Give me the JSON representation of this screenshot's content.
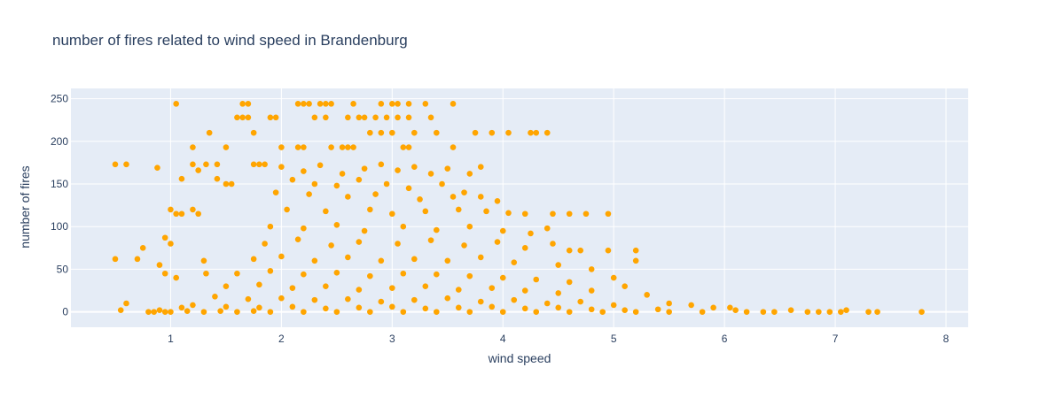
{
  "chart_data": {
    "type": "scatter",
    "title": "number of fires related to wind speed in Brandenburg",
    "xlabel": "wind speed",
    "ylabel": "number of fires",
    "xlim": [
      0.1,
      8.2
    ],
    "ylim": [
      -18,
      262
    ],
    "x_ticks": [
      1,
      2,
      3,
      4,
      5,
      6,
      7,
      8
    ],
    "y_ticks": [
      0,
      50,
      100,
      150,
      200,
      250
    ],
    "grid": true,
    "legend": "none",
    "colors": {
      "marker": "#FFA500",
      "plot_bg": "#E5ECF6",
      "grid": "#ffffff",
      "text": "#2a3f5f"
    },
    "series": [
      {
        "points": [
          [
            0.5,
            173
          ],
          [
            0.6,
            173
          ],
          [
            0.5,
            62
          ],
          [
            0.88,
            169
          ],
          [
            1.05,
            244
          ],
          [
            1.65,
            244
          ],
          [
            1.7,
            244
          ],
          [
            2.15,
            244
          ],
          [
            2.2,
            244
          ],
          [
            2.25,
            244
          ],
          [
            2.35,
            244
          ],
          [
            2.4,
            244
          ],
          [
            2.45,
            244
          ],
          [
            2.65,
            244
          ],
          [
            2.9,
            244
          ],
          [
            3.0,
            244
          ],
          [
            3.05,
            244
          ],
          [
            3.15,
            244
          ],
          [
            3.3,
            244
          ],
          [
            3.55,
            244
          ],
          [
            1.6,
            228
          ],
          [
            1.65,
            228
          ],
          [
            1.7,
            228
          ],
          [
            1.9,
            228
          ],
          [
            1.95,
            228
          ],
          [
            2.3,
            228
          ],
          [
            2.4,
            228
          ],
          [
            2.6,
            228
          ],
          [
            2.7,
            228
          ],
          [
            2.75,
            228
          ],
          [
            2.85,
            228
          ],
          [
            2.95,
            228
          ],
          [
            3.05,
            228
          ],
          [
            3.15,
            228
          ],
          [
            3.35,
            228
          ],
          [
            1.75,
            210
          ],
          [
            2.8,
            210
          ],
          [
            2.9,
            210
          ],
          [
            3.0,
            210
          ],
          [
            3.2,
            210
          ],
          [
            3.4,
            210
          ],
          [
            3.75,
            210
          ],
          [
            3.9,
            210
          ],
          [
            4.05,
            210
          ],
          [
            4.25,
            210
          ],
          [
            4.3,
            210
          ],
          [
            4.4,
            210
          ],
          [
            1.35,
            210
          ],
          [
            1.2,
            193
          ],
          [
            1.5,
            193
          ],
          [
            2.0,
            193
          ],
          [
            2.15,
            193
          ],
          [
            2.2,
            193
          ],
          [
            2.45,
            193
          ],
          [
            2.55,
            193
          ],
          [
            2.6,
            193
          ],
          [
            2.65,
            193
          ],
          [
            3.15,
            193
          ],
          [
            3.55,
            193
          ],
          [
            3.1,
            193
          ],
          [
            1.2,
            173
          ],
          [
            1.32,
            173
          ],
          [
            1.42,
            173
          ],
          [
            1.75,
            173
          ],
          [
            1.8,
            173
          ],
          [
            1.85,
            173
          ],
          [
            1.1,
            156
          ],
          [
            1.25,
            166
          ],
          [
            1.5,
            150
          ],
          [
            1.55,
            150
          ],
          [
            1.42,
            156
          ],
          [
            1.0,
            120
          ],
          [
            1.05,
            115
          ],
          [
            1.1,
            115
          ],
          [
            1.2,
            120
          ],
          [
            1.25,
            115
          ],
          [
            0.95,
            87
          ],
          [
            1.0,
            80
          ],
          [
            0.75,
            75
          ],
          [
            0.7,
            62
          ],
          [
            0.9,
            55
          ],
          [
            0.95,
            45
          ],
          [
            1.05,
            40
          ],
          [
            1.3,
            60
          ],
          [
            1.32,
            45
          ],
          [
            0.6,
            10
          ],
          [
            0.55,
            2
          ],
          [
            0.8,
            0
          ],
          [
            0.9,
            2
          ],
          [
            1.1,
            5
          ],
          [
            4.2,
            115
          ],
          [
            4.45,
            115
          ],
          [
            4.6,
            115
          ],
          [
            4.75,
            115
          ],
          [
            4.95,
            115
          ],
          [
            4.6,
            72
          ],
          [
            4.7,
            72
          ],
          [
            4.95,
            72
          ],
          [
            5.2,
            72
          ],
          [
            5.2,
            60
          ],
          [
            5.0,
            40
          ],
          [
            5.1,
            30
          ],
          [
            5.3,
            20
          ],
          [
            5.5,
            10
          ],
          [
            5.7,
            8
          ],
          [
            5.9,
            5
          ],
          [
            6.05,
            5
          ],
          [
            6.1,
            2
          ],
          [
            6.2,
            0
          ],
          [
            6.35,
            0
          ],
          [
            6.45,
            0
          ],
          [
            6.6,
            2
          ],
          [
            6.75,
            0
          ],
          [
            6.85,
            0
          ],
          [
            6.95,
            0
          ],
          [
            7.05,
            0
          ],
          [
            7.3,
            0
          ],
          [
            7.38,
            0
          ],
          [
            7.1,
            2
          ],
          [
            7.78,
            0
          ],
          [
            2.0,
            170
          ],
          [
            2.2,
            165
          ],
          [
            2.35,
            172
          ],
          [
            2.55,
            162
          ],
          [
            2.75,
            168
          ],
          [
            2.9,
            173
          ],
          [
            3.05,
            166
          ],
          [
            3.2,
            170
          ],
          [
            3.35,
            162
          ],
          [
            3.5,
            168
          ],
          [
            3.7,
            162
          ],
          [
            3.8,
            170
          ],
          [
            2.1,
            155
          ],
          [
            2.3,
            150
          ],
          [
            2.5,
            148
          ],
          [
            2.7,
            155
          ],
          [
            2.95,
            150
          ],
          [
            3.15,
            145
          ],
          [
            3.45,
            150
          ],
          [
            3.65,
            140
          ],
          [
            1.95,
            140
          ],
          [
            2.25,
            138
          ],
          [
            2.6,
            135
          ],
          [
            2.85,
            138
          ],
          [
            3.25,
            132
          ],
          [
            3.55,
            135
          ],
          [
            3.8,
            135
          ],
          [
            3.95,
            130
          ],
          [
            2.05,
            120
          ],
          [
            2.4,
            118
          ],
          [
            2.8,
            120
          ],
          [
            3.0,
            115
          ],
          [
            3.3,
            118
          ],
          [
            3.6,
            120
          ],
          [
            3.85,
            118
          ],
          [
            4.05,
            116
          ],
          [
            1.9,
            100
          ],
          [
            2.2,
            98
          ],
          [
            2.5,
            102
          ],
          [
            2.75,
            95
          ],
          [
            3.1,
            100
          ],
          [
            3.4,
            96
          ],
          [
            3.7,
            100
          ],
          [
            4.0,
            95
          ],
          [
            4.25,
            92
          ],
          [
            4.4,
            98
          ],
          [
            1.85,
            80
          ],
          [
            2.15,
            85
          ],
          [
            2.45,
            78
          ],
          [
            2.7,
            82
          ],
          [
            3.05,
            80
          ],
          [
            3.35,
            84
          ],
          [
            3.65,
            78
          ],
          [
            3.95,
            82
          ],
          [
            4.2,
            75
          ],
          [
            4.45,
            80
          ],
          [
            1.75,
            62
          ],
          [
            2.0,
            65
          ],
          [
            2.3,
            60
          ],
          [
            2.6,
            64
          ],
          [
            2.9,
            60
          ],
          [
            3.2,
            62
          ],
          [
            3.5,
            60
          ],
          [
            3.8,
            64
          ],
          [
            4.1,
            58
          ],
          [
            4.5,
            55
          ],
          [
            4.8,
            50
          ],
          [
            1.6,
            45
          ],
          [
            1.9,
            48
          ],
          [
            2.2,
            44
          ],
          [
            2.5,
            46
          ],
          [
            2.8,
            42
          ],
          [
            3.1,
            45
          ],
          [
            3.4,
            44
          ],
          [
            3.7,
            42
          ],
          [
            4.0,
            40
          ],
          [
            4.3,
            38
          ],
          [
            4.6,
            35
          ],
          [
            1.5,
            30
          ],
          [
            1.8,
            32
          ],
          [
            2.1,
            28
          ],
          [
            2.4,
            30
          ],
          [
            2.7,
            26
          ],
          [
            3.0,
            28
          ],
          [
            3.3,
            30
          ],
          [
            3.6,
            26
          ],
          [
            3.9,
            28
          ],
          [
            4.2,
            25
          ],
          [
            4.5,
            22
          ],
          [
            4.8,
            25
          ],
          [
            1.4,
            18
          ],
          [
            1.7,
            15
          ],
          [
            2.0,
            16
          ],
          [
            2.3,
            14
          ],
          [
            2.6,
            15
          ],
          [
            2.9,
            12
          ],
          [
            3.2,
            14
          ],
          [
            3.5,
            16
          ],
          [
            3.8,
            12
          ],
          [
            4.1,
            14
          ],
          [
            4.4,
            10
          ],
          [
            4.7,
            12
          ],
          [
            5.0,
            8
          ],
          [
            1.2,
            8
          ],
          [
            1.5,
            6
          ],
          [
            1.8,
            5
          ],
          [
            2.1,
            6
          ],
          [
            2.4,
            4
          ],
          [
            2.7,
            5
          ],
          [
            3.0,
            6
          ],
          [
            3.3,
            4
          ],
          [
            3.6,
            5
          ],
          [
            3.9,
            6
          ],
          [
            4.2,
            4
          ],
          [
            4.5,
            5
          ],
          [
            4.8,
            3
          ],
          [
            5.1,
            2
          ],
          [
            5.4,
            3
          ],
          [
            1.0,
            0
          ],
          [
            1.3,
            0
          ],
          [
            1.6,
            0
          ],
          [
            1.9,
            0
          ],
          [
            2.2,
            0
          ],
          [
            2.5,
            0
          ],
          [
            2.8,
            0
          ],
          [
            3.1,
            0
          ],
          [
            3.4,
            0
          ],
          [
            3.7,
            0
          ],
          [
            4.0,
            0
          ],
          [
            4.3,
            0
          ],
          [
            4.6,
            0
          ],
          [
            4.9,
            0
          ],
          [
            5.2,
            0
          ],
          [
            5.5,
            0
          ],
          [
            5.8,
            0
          ],
          [
            0.85,
            0
          ],
          [
            0.95,
            0
          ],
          [
            1.15,
            1
          ],
          [
            1.45,
            1
          ],
          [
            1.75,
            1
          ]
        ]
      }
    ]
  }
}
